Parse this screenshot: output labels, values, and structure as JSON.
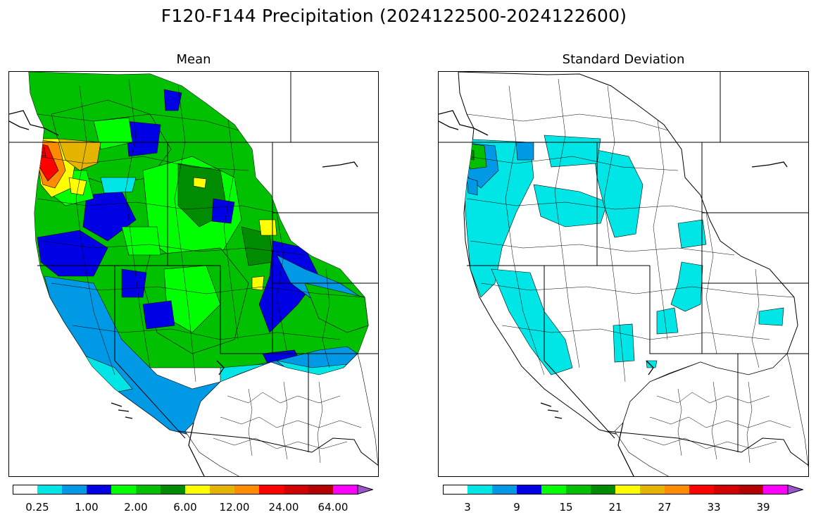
{
  "title": "F120-F144 Precipitation (2024122500-2024122600)",
  "panels": {
    "mean": {
      "title": "Mean",
      "colorbar": {
        "colors": [
          "#ffffff",
          "#00e5e5",
          "#0099e5",
          "#0000e5",
          "#00ff00",
          "#00c000",
          "#008c00",
          "#ffff00",
          "#e5b400",
          "#ff8c00",
          "#ff0000",
          "#d20000",
          "#b40000",
          "#ff00ff",
          "#9955cc"
        ],
        "tick_labels": [
          "0.25",
          "1.00",
          "2.00",
          "6.00",
          "12.00",
          "24.00",
          "64.00"
        ],
        "extend": "max"
      }
    },
    "std": {
      "title": "Standard Deviation",
      "colorbar": {
        "colors": [
          "#ffffff",
          "#00e5e5",
          "#0099e5",
          "#0000e5",
          "#00ff00",
          "#00c000",
          "#008c00",
          "#ffff00",
          "#e5b400",
          "#ff8c00",
          "#ff0000",
          "#d20000",
          "#b40000",
          "#ff00ff",
          "#9955cc"
        ],
        "tick_labels": [
          "3",
          "9",
          "15",
          "21",
          "27",
          "33",
          "39"
        ],
        "extend": "max"
      }
    }
  }
}
